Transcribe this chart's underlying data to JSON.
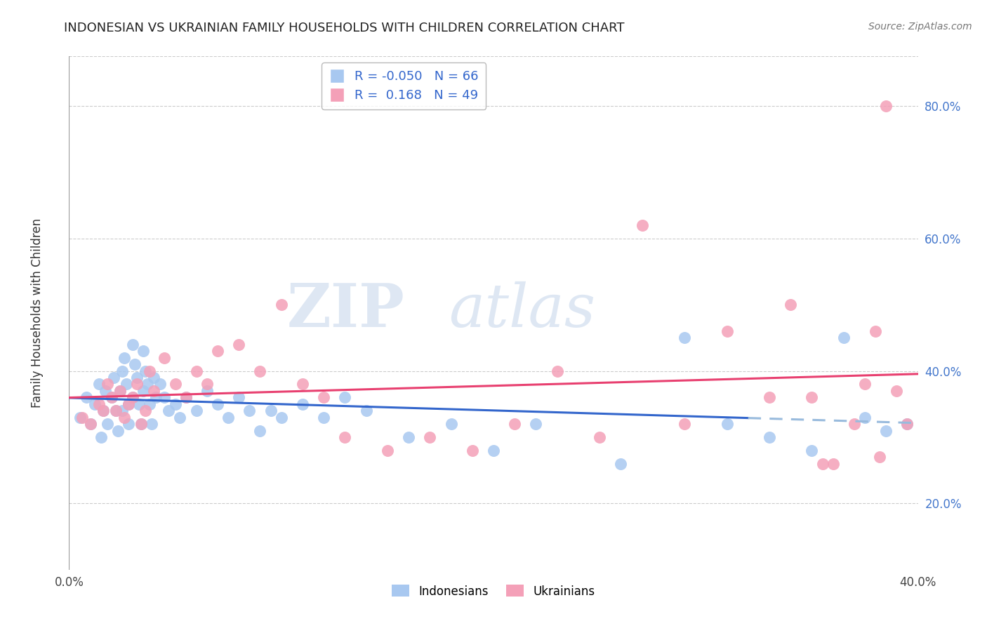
{
  "title": "INDONESIAN VS UKRAINIAN FAMILY HOUSEHOLDS WITH CHILDREN CORRELATION CHART",
  "source": "Source: ZipAtlas.com",
  "ylabel": "Family Households with Children",
  "xlabel": "",
  "xlim": [
    0.0,
    0.4
  ],
  "ylim": [
    0.1,
    0.875
  ],
  "yticks": [
    0.2,
    0.4,
    0.6,
    0.8
  ],
  "ytick_labels": [
    "20.0%",
    "40.0%",
    "60.0%",
    "80.0%"
  ],
  "xticks": [
    0.0,
    0.1,
    0.2,
    0.3,
    0.4
  ],
  "xtick_labels": [
    "0.0%",
    "",
    "",
    "",
    "40.0%"
  ],
  "grid_color": "#cccccc",
  "background_color": "#ffffff",
  "indonesian_color": "#a8c8f0",
  "ukrainian_color": "#f4a0b8",
  "indonesian_line_color": "#3366cc",
  "indonesian_dash_color": "#99bbdd",
  "ukrainian_line_color": "#e84070",
  "R_indonesian": -0.05,
  "N_indonesian": 66,
  "R_ukrainian": 0.168,
  "N_ukrainian": 49,
  "indonesian_x": [
    0.005,
    0.008,
    0.01,
    0.012,
    0.014,
    0.015,
    0.016,
    0.017,
    0.018,
    0.02,
    0.021,
    0.022,
    0.023,
    0.024,
    0.025,
    0.025,
    0.026,
    0.027,
    0.028,
    0.028,
    0.03,
    0.03,
    0.031,
    0.032,
    0.033,
    0.034,
    0.035,
    0.035,
    0.036,
    0.037,
    0.038,
    0.039,
    0.04,
    0.041,
    0.043,
    0.045,
    0.047,
    0.05,
    0.052,
    0.055,
    0.06,
    0.065,
    0.07,
    0.075,
    0.08,
    0.085,
    0.09,
    0.095,
    0.1,
    0.11,
    0.12,
    0.13,
    0.14,
    0.16,
    0.18,
    0.2,
    0.22,
    0.26,
    0.29,
    0.31,
    0.33,
    0.35,
    0.365,
    0.375,
    0.385,
    0.395
  ],
  "indonesian_y": [
    0.33,
    0.36,
    0.32,
    0.35,
    0.38,
    0.3,
    0.34,
    0.37,
    0.32,
    0.36,
    0.39,
    0.34,
    0.31,
    0.37,
    0.4,
    0.34,
    0.42,
    0.38,
    0.35,
    0.32,
    0.44,
    0.36,
    0.41,
    0.39,
    0.35,
    0.32,
    0.43,
    0.37,
    0.4,
    0.38,
    0.35,
    0.32,
    0.39,
    0.36,
    0.38,
    0.36,
    0.34,
    0.35,
    0.33,
    0.36,
    0.34,
    0.37,
    0.35,
    0.33,
    0.36,
    0.34,
    0.31,
    0.34,
    0.33,
    0.35,
    0.33,
    0.36,
    0.34,
    0.3,
    0.32,
    0.28,
    0.32,
    0.26,
    0.45,
    0.32,
    0.3,
    0.28,
    0.45,
    0.33,
    0.31,
    0.32
  ],
  "ukrainian_x": [
    0.006,
    0.01,
    0.014,
    0.016,
    0.018,
    0.02,
    0.022,
    0.024,
    0.026,
    0.028,
    0.03,
    0.032,
    0.034,
    0.036,
    0.038,
    0.04,
    0.045,
    0.05,
    0.055,
    0.06,
    0.065,
    0.07,
    0.08,
    0.09,
    0.1,
    0.11,
    0.12,
    0.13,
    0.15,
    0.17,
    0.19,
    0.21,
    0.23,
    0.25,
    0.27,
    0.29,
    0.31,
    0.33,
    0.34,
    0.35,
    0.355,
    0.36,
    0.37,
    0.375,
    0.38,
    0.382,
    0.385,
    0.39,
    0.395
  ],
  "ukrainian_y": [
    0.33,
    0.32,
    0.35,
    0.34,
    0.38,
    0.36,
    0.34,
    0.37,
    0.33,
    0.35,
    0.36,
    0.38,
    0.32,
    0.34,
    0.4,
    0.37,
    0.42,
    0.38,
    0.36,
    0.4,
    0.38,
    0.43,
    0.44,
    0.4,
    0.5,
    0.38,
    0.36,
    0.3,
    0.28,
    0.3,
    0.28,
    0.32,
    0.4,
    0.3,
    0.62,
    0.32,
    0.46,
    0.36,
    0.5,
    0.36,
    0.26,
    0.26,
    0.32,
    0.38,
    0.46,
    0.27,
    0.8,
    0.37,
    0.32
  ],
  "watermark_zip": "ZIP",
  "watermark_atlas": "atlas",
  "watermark_color": "#c8d8ec",
  "watermark_alpha": 0.6,
  "indonesian_line_split": 0.32
}
